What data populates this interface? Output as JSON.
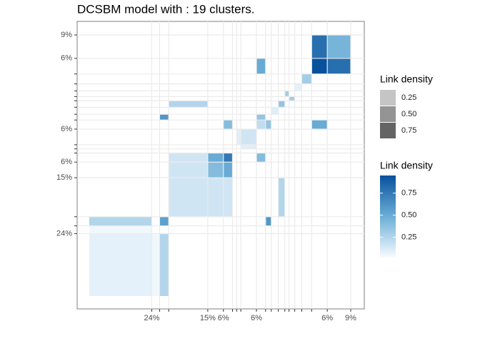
{
  "chart_data": {
    "type": "heatmap",
    "title": "DCSBM model with : 19 clusters.",
    "categories": [
      "24%",
      null,
      null,
      "15%",
      "6%",
      null,
      null,
      null,
      "6%",
      null,
      null,
      null,
      null,
      null,
      null,
      null,
      null,
      "6%",
      "9%"
    ],
    "sizes": [
      24,
      3,
      3.5,
      15,
      6,
      3.5,
      1.6,
      1.6,
      6,
      3.5,
      2.2,
      2.7,
      2.5,
      1.6,
      2.2,
      2.7,
      3.8,
      6,
      9
    ],
    "cells": [
      {
        "row": 0,
        "col": 0,
        "value": 0.08
      },
      {
        "row": 2,
        "col": 0,
        "value": 0.25
      },
      {
        "row": 0,
        "col": 2,
        "value": 0.25
      },
      {
        "row": 2,
        "col": 2,
        "value": 0.55
      },
      {
        "row": 1,
        "col": 0,
        "value": 0.04
      },
      {
        "row": 0,
        "col": 1,
        "value": 0.04
      },
      {
        "row": 3,
        "col": 3,
        "value": 0.15
      },
      {
        "row": 4,
        "col": 4,
        "value": 0.4
      },
      {
        "row": 3,
        "col": 4,
        "value": 0.15
      },
      {
        "row": 4,
        "col": 3,
        "value": 0.15
      },
      {
        "row": 5,
        "col": 5,
        "value": 0.75
      },
      {
        "row": 4,
        "col": 5,
        "value": 0.5
      },
      {
        "row": 5,
        "col": 4,
        "value": 0.5
      },
      {
        "row": 3,
        "col": 5,
        "value": 0.15
      },
      {
        "row": 5,
        "col": 3,
        "value": 0.15
      },
      {
        "row": 8,
        "col": 8,
        "value": 0.15
      },
      {
        "row": 5,
        "col": 9,
        "value": 0.4
      },
      {
        "row": 9,
        "col": 5,
        "value": 0.4
      },
      {
        "row": 18,
        "col": 17,
        "value": 0.8
      },
      {
        "row": 17,
        "col": 18,
        "value": 0.8
      },
      {
        "row": 18,
        "col": 18,
        "value": 0.45
      },
      {
        "row": 17,
        "col": 17,
        "value": 0.95
      },
      {
        "row": 17,
        "col": 9,
        "value": 0.5
      },
      {
        "row": 9,
        "col": 17,
        "value": 0.5
      },
      {
        "row": 16,
        "col": 16,
        "value": 0.3
      },
      {
        "row": 13,
        "col": 14,
        "value": 0.3
      },
      {
        "row": 14,
        "col": 13,
        "value": 0.3
      },
      {
        "row": 12,
        "col": 12,
        "value": 0.35
      },
      {
        "row": 11,
        "col": 11,
        "value": 0.1
      },
      {
        "row": 10,
        "col": 9,
        "value": 0.35
      },
      {
        "row": 9,
        "col": 10,
        "value": 0.35
      },
      {
        "row": 2,
        "col": 10,
        "value": 0.6
      },
      {
        "row": 10,
        "col": 2,
        "value": 0.6
      },
      {
        "row": 12,
        "col": 3,
        "value": 0.25
      },
      {
        "row": 3,
        "col": 12,
        "value": 0.25
      },
      {
        "row": 7,
        "col": 8,
        "value": 0.1
      },
      {
        "row": 8,
        "col": 7,
        "value": 0.1
      },
      {
        "row": 15,
        "col": 15,
        "value": 0.08
      },
      {
        "row": 9,
        "col": 9,
        "value": 0.2
      }
    ],
    "colors": [
      "#f7fbff",
      "#6baed6",
      "#08519c"
    ],
    "grid": true,
    "legends": [
      {
        "title": "Link density",
        "type": "alpha",
        "values": [
          0.25,
          {
            "value": 0.5,
            "label": "0.50"
          },
          0.75
        ]
      },
      {
        "title": "Link density",
        "type": "colorbar",
        "range": [
          0.02,
          0.95
        ],
        "ticks": [
          0.25,
          {
            "value": 0.5,
            "label": "0.50"
          },
          0.75
        ]
      }
    ]
  }
}
